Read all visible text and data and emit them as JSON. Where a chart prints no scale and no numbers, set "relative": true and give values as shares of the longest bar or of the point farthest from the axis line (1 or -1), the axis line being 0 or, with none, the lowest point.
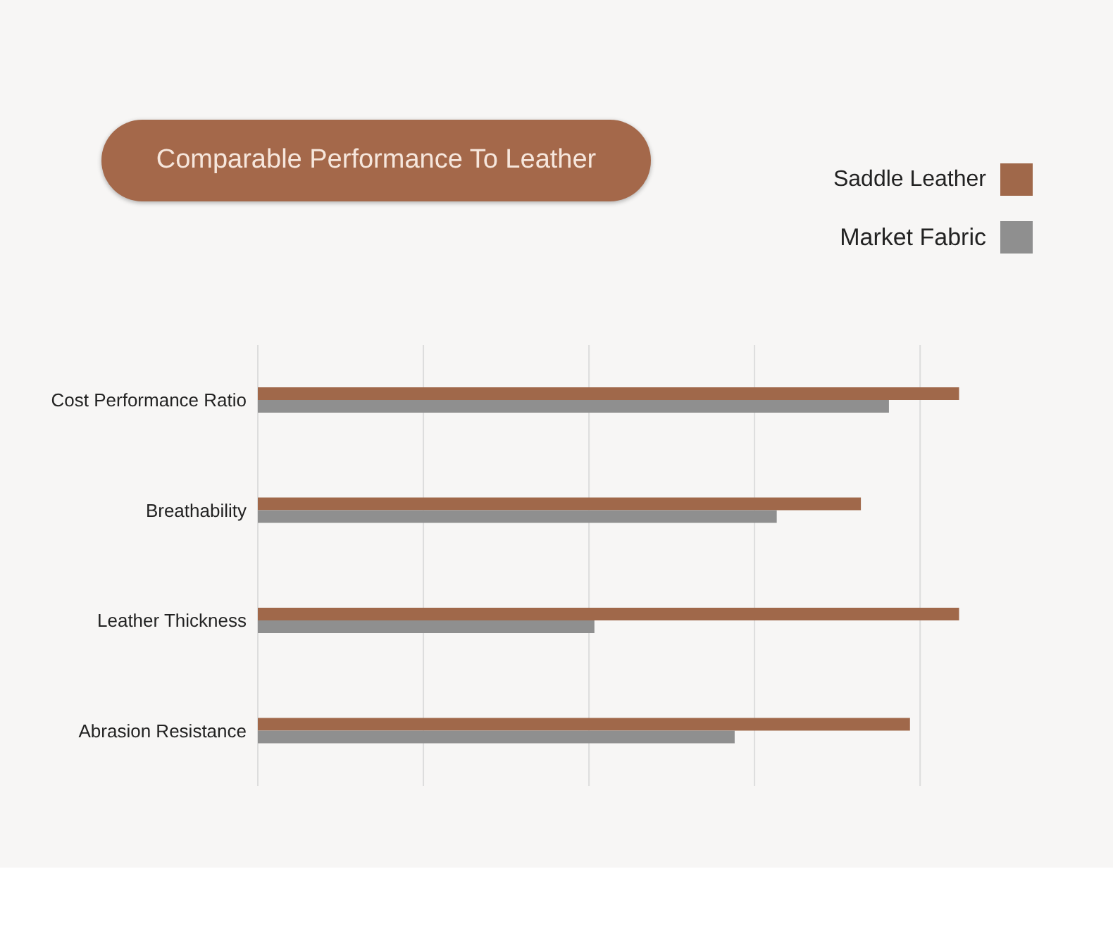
{
  "chart_data": {
    "type": "bar",
    "orientation": "horizontal",
    "relative": true,
    "title": "Comparable Performance To Leather",
    "categories": [
      "Cost Performance Ratio",
      "Breathability",
      "Leather Thickness",
      "Abrasion Resistance"
    ],
    "series": [
      {
        "name": "Saddle Leather",
        "color": "#a0684a",
        "values": [
          1,
          0.86,
          1,
          0.93
        ]
      },
      {
        "name": "Market Fabric",
        "color": "#8f8f8f",
        "values": [
          0.9,
          0.74,
          0.48,
          0.68
        ]
      }
    ],
    "grid": "x",
    "legend": "top right"
  }
}
